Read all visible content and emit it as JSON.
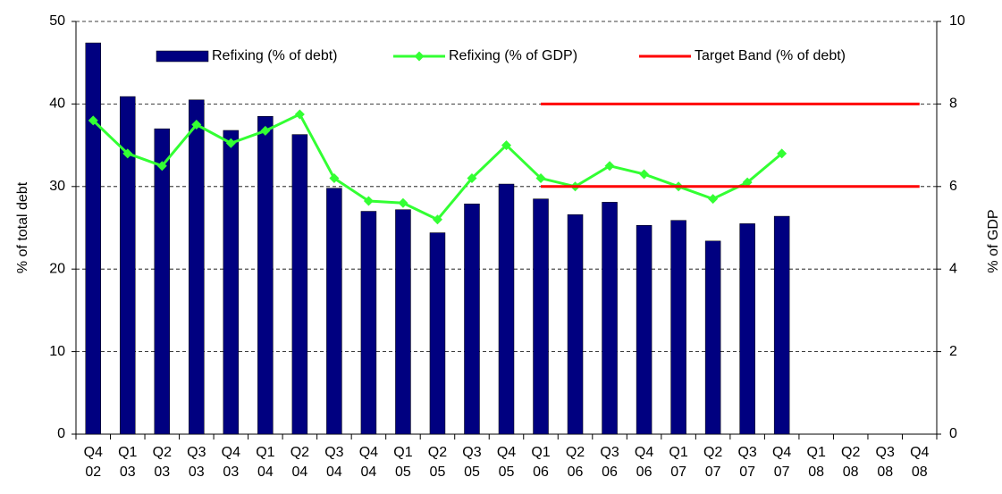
{
  "chart_data": {
    "type": "bar_line",
    "categories": [
      "Q4 02",
      "Q1 03",
      "Q2 03",
      "Q3 03",
      "Q4 03",
      "Q1 04",
      "Q2 04",
      "Q3 04",
      "Q4 04",
      "Q1 05",
      "Q2 05",
      "Q3 05",
      "Q4 05",
      "Q1 06",
      "Q2 06",
      "Q3 06",
      "Q4 06",
      "Q1 07",
      "Q2 07",
      "Q3 07",
      "Q4 07",
      "Q1 08",
      "Q2 08",
      "Q3 08",
      "Q4 08"
    ],
    "series": [
      {
        "name": "Refixing (% of debt)",
        "type": "bar",
        "color": "#000080",
        "values": [
          47.4,
          40.9,
          37,
          40.5,
          36.8,
          38.5,
          36.3,
          29.8,
          27,
          27.2,
          24.4,
          27.9,
          30.3,
          28.5,
          26.6,
          28.1,
          25.3,
          25.9,
          23.4,
          25.5,
          26.4,
          null,
          null,
          null,
          null
        ]
      },
      {
        "name": "Refixing (% of GDP)",
        "type": "line",
        "axis": "y2",
        "color": "#33ff33",
        "values": [
          7.6,
          6.8,
          6.5,
          7.5,
          7.05,
          7.35,
          7.75,
          6.2,
          5.65,
          5.6,
          5.2,
          6.2,
          7.0,
          6.2,
          6.0,
          6.5,
          6.3,
          6.0,
          5.7,
          6.1,
          6.8,
          null,
          null,
          null,
          null
        ]
      },
      {
        "name": "Target Band (% of debt)",
        "type": "band",
        "color": "#ff0000",
        "values": [
          null,
          null,
          null,
          null,
          null,
          null,
          null,
          null,
          null,
          null,
          null,
          null,
          null,
          40,
          40,
          40,
          40,
          40,
          40,
          40,
          40,
          40,
          40,
          40,
          40
        ],
        "lower": [
          null,
          null,
          null,
          null,
          null,
          null,
          null,
          null,
          null,
          null,
          null,
          null,
          null,
          30,
          30,
          30,
          30,
          30,
          30,
          30,
          30,
          30,
          30,
          30,
          30
        ]
      }
    ],
    "ylabel": "% of total debt",
    "y2label": "% of GDP",
    "ylim": [
      0,
      50
    ],
    "yticks": [
      0,
      10,
      20,
      30,
      40,
      50
    ],
    "y2lim": [
      0,
      10
    ],
    "y2ticks": [
      0,
      2,
      4,
      6,
      8,
      10
    ],
    "grid": true
  }
}
